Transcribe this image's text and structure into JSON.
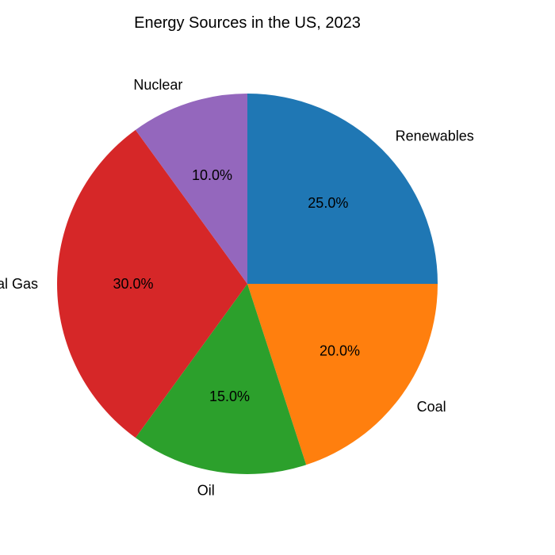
{
  "chart_data": {
    "type": "pie",
    "title": "Energy Sources in the US, 2023",
    "labels": [
      "Renewables",
      "Coal",
      "Oil",
      "Natural Gas",
      "Nuclear"
    ],
    "values": [
      25.0,
      20.0,
      15.0,
      30.0,
      10.0
    ],
    "value_labels": [
      "25.0%",
      "20.0%",
      "15.0%",
      "30.0%",
      "10.0%"
    ],
    "colors": [
      "#1f77b4",
      "#ff7f0e",
      "#2ca02c",
      "#d62728",
      "#9467bd"
    ],
    "start_angle_deg": 90,
    "direction": "clockwise"
  }
}
